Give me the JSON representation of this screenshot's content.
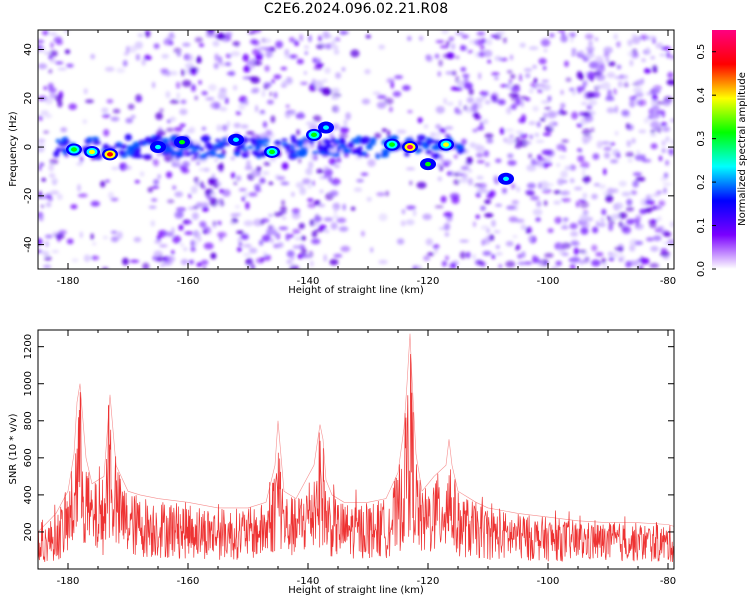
{
  "title": "C2E6.2024.096.02.21.R08",
  "chart_data": [
    {
      "type": "heatmap",
      "xlabel": "Height of straight line (km)",
      "ylabel": "Frequency (Hz)",
      "xlim": [
        -185,
        -79
      ],
      "ylim": [
        -50,
        48
      ],
      "xticks": [
        -180,
        -160,
        -140,
        -120,
        -100,
        -80
      ],
      "yticks": [
        -40,
        -20,
        0,
        20,
        40
      ],
      "colorbar": {
        "label": "Normalized spectral amplitude",
        "range": [
          0.0,
          0.55
        ],
        "ticks": [
          "0.0",
          "0.1",
          "0.2",
          "0.3",
          "0.4",
          "0.5"
        ],
        "colors": [
          "#ffffff",
          "#7a00ff",
          "#0000ff",
          "#00ffff",
          "#00ff00",
          "#ffff00",
          "#ff0000",
          "#ff0080"
        ]
      },
      "hotspots": [
        {
          "x": -179,
          "y": -1,
          "amp": 0.3
        },
        {
          "x": -176,
          "y": -2,
          "amp": 0.33
        },
        {
          "x": -173,
          "y": -3,
          "amp": 0.45
        },
        {
          "x": -165,
          "y": 0,
          "amp": 0.22
        },
        {
          "x": -161,
          "y": 2,
          "amp": 0.25
        },
        {
          "x": -152,
          "y": 3,
          "amp": 0.22
        },
        {
          "x": -146,
          "y": -2,
          "amp": 0.28
        },
        {
          "x": -139,
          "y": 5,
          "amp": 0.3
        },
        {
          "x": -137,
          "y": 8,
          "amp": 0.22
        },
        {
          "x": -126,
          "y": 1,
          "amp": 0.3
        },
        {
          "x": -123,
          "y": 0,
          "amp": 0.48
        },
        {
          "x": -120,
          "y": -7,
          "amp": 0.25
        },
        {
          "x": -117,
          "y": 1,
          "amp": 0.32
        },
        {
          "x": -107,
          "y": -13,
          "amp": 0.2
        }
      ]
    },
    {
      "type": "line",
      "xlabel": "Height of straight line (km)",
      "ylabel": "SNR (10 * v/v)",
      "xlim": [
        -185,
        -79
      ],
      "ylim": [
        0,
        1290
      ],
      "xticks": [
        -180,
        -160,
        -140,
        -120,
        -100,
        -80
      ],
      "yticks": [
        200,
        400,
        600,
        800,
        1000,
        1200
      ],
      "color": "#ee3333",
      "x": [
        -185,
        -182,
        -180,
        -179,
        -178.5,
        -178,
        -177,
        -176,
        -174,
        -173.5,
        -173,
        -172,
        -170,
        -168,
        -165,
        -160,
        -155,
        -150,
        -147,
        -145.5,
        -145,
        -144,
        -142,
        -139,
        -138,
        -137.5,
        -137,
        -136,
        -134,
        -130,
        -127,
        -125,
        -124,
        -123.5,
        -123,
        -122.7,
        -122,
        -121,
        -119,
        -117,
        -116.5,
        -116,
        -115,
        -112,
        -110,
        -105,
        -100,
        -95,
        -90,
        -85,
        -80,
        -79
      ],
      "values": [
        200,
        300,
        420,
        620,
        900,
        1000,
        600,
        460,
        500,
        720,
        940,
        560,
        420,
        400,
        380,
        360,
        330,
        330,
        360,
        560,
        800,
        420,
        380,
        560,
        780,
        700,
        480,
        400,
        360,
        360,
        380,
        520,
        760,
        1000,
        1270,
        1050,
        620,
        420,
        500,
        560,
        700,
        560,
        420,
        360,
        330,
        300,
        280,
        260,
        250,
        250,
        240,
        230
      ]
    }
  ]
}
